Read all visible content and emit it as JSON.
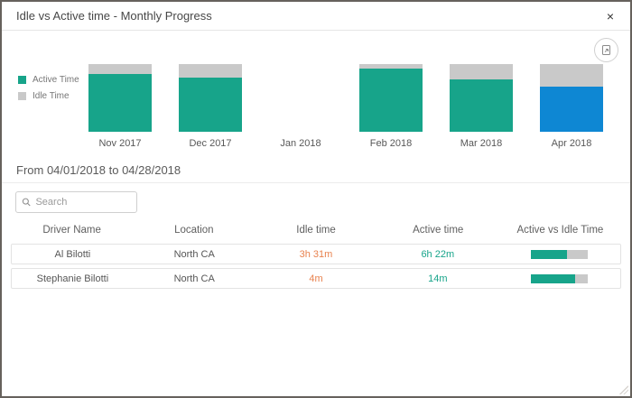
{
  "window": {
    "title": "Idle vs Active time - Monthly Progress",
    "close_glyph": "×"
  },
  "colors": {
    "active": "#17a48a",
    "idle": "#c9c9c9",
    "selected_month": "#0e87d3",
    "idle_text": "#e8824e",
    "active_text": "#17a48a"
  },
  "chart_data": {
    "type": "bar",
    "stacked": true,
    "orientation": "vertical",
    "categories": [
      "Nov 2017",
      "Dec 2017",
      "Jan 2018",
      "Feb 2018",
      "Mar 2018",
      "Apr 2018"
    ],
    "series": [
      {
        "name": "Active Time",
        "values": [
          85,
          80,
          0,
          93,
          78,
          67
        ]
      },
      {
        "name": "Idle Time",
        "values": [
          15,
          20,
          0,
          7,
          22,
          33
        ]
      }
    ],
    "value_unit": "percent of total bar height",
    "active_bar_colors": [
      "#17a48a",
      "#17a48a",
      null,
      "#17a48a",
      "#17a48a",
      "#0e87d3"
    ],
    "idle_bar_color": "#c9c9c9",
    "legend_position": "left",
    "ylim": [
      0,
      100
    ],
    "grid": false,
    "note": "Jan 2018 has no bar; Apr 2018 active segment is highlighted blue (selected month)"
  },
  "legend": {
    "items": [
      {
        "label": "Active Time",
        "color": "#17a48a"
      },
      {
        "label": "Idle Time",
        "color": "#c9c9c9"
      }
    ]
  },
  "period_heading": "From 04/01/2018 to 04/28/2018",
  "search": {
    "placeholder": "Search"
  },
  "table": {
    "columns": [
      "Driver Name",
      "Location",
      "Idle time",
      "Active time",
      "Active vs Idle Time"
    ],
    "rows": [
      {
        "driver": "Al Bilotti",
        "location": "North CA",
        "idle": "3h 31m",
        "active": "6h 22m",
        "active_pct": 64
      },
      {
        "driver": "Stephanie Bilotti",
        "location": "North CA",
        "idle": "4m",
        "active": "14m",
        "active_pct": 78
      }
    ]
  }
}
